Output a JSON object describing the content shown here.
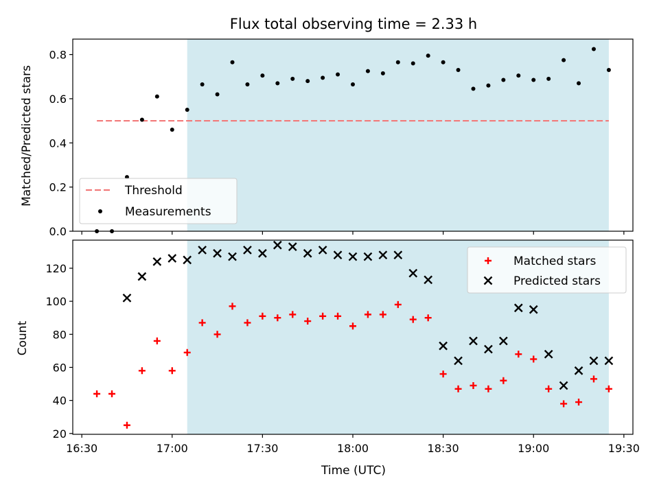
{
  "title": "Flux total observing time = 2.33 h",
  "chart_data": [
    {
      "type": "scatter",
      "ylabel": "Matched/Predicted stars",
      "ylim": [
        0,
        0.87
      ],
      "yticks": [
        0,
        0.2,
        0.4,
        0.6,
        0.8
      ],
      "ytick_labels": [
        "0.0",
        "0.2",
        "0.4",
        "0.6",
        "0.8"
      ],
      "shaded_region": [
        "17:05",
        "19:25"
      ],
      "shade_color": "#d3eaf0",
      "legend": {
        "position": "lower-left",
        "entries": [
          "Threshold",
          "Measurements"
        ]
      },
      "series": [
        {
          "name": "Threshold",
          "kind": "dashed-line",
          "color": "#f27a7a",
          "x": [
            "16:35",
            "19:25"
          ],
          "y": [
            0.5,
            0.5
          ]
        },
        {
          "name": "Measurements",
          "kind": "dot",
          "color": "#000000",
          "x": [
            "16:35",
            "16:40",
            "16:45",
            "16:50",
            "16:55",
            "17:00",
            "17:05",
            "17:10",
            "17:15",
            "17:20",
            "17:25",
            "17:30",
            "17:35",
            "17:40",
            "17:45",
            "17:50",
            "17:55",
            "18:00",
            "18:05",
            "18:10",
            "18:15",
            "18:20",
            "18:25",
            "18:30",
            "18:35",
            "18:40",
            "18:45",
            "18:50",
            "18:55",
            "19:00",
            "19:05",
            "19:10",
            "19:15",
            "19:20",
            "19:25"
          ],
          "y": [
            0.0,
            0.0,
            0.245,
            0.505,
            0.61,
            0.46,
            0.55,
            0.665,
            0.62,
            0.765,
            0.665,
            0.705,
            0.67,
            0.69,
            0.68,
            0.695,
            0.71,
            0.665,
            0.725,
            0.715,
            0.765,
            0.76,
            0.795,
            0.765,
            0.73,
            0.645,
            0.66,
            0.685,
            0.705,
            0.685,
            0.69,
            0.775,
            0.67,
            0.825,
            0.73
          ]
        }
      ]
    },
    {
      "type": "scatter",
      "xlabel": "Time (UTC)",
      "ylabel": "Count",
      "ylim": [
        19.5,
        137
      ],
      "yticks": [
        20,
        40,
        60,
        80,
        100,
        120
      ],
      "ytick_labels": [
        "20",
        "40",
        "60",
        "80",
        "100",
        "120"
      ],
      "x_tick_labels": [
        "16:30",
        "17:00",
        "17:30",
        "18:00",
        "18:30",
        "19:00",
        "19:30"
      ],
      "xlim": [
        "16:27",
        "19:33"
      ],
      "shaded_region": [
        "17:05",
        "19:25"
      ],
      "shade_color": "#d3eaf0",
      "legend": {
        "position": "upper-right",
        "entries": [
          "Matched stars",
          "Predicted stars"
        ]
      },
      "series": [
        {
          "name": "Matched stars",
          "kind": "plus",
          "color": "#ff0000",
          "x": [
            "16:35",
            "16:40",
            "16:45",
            "16:50",
            "16:55",
            "17:00",
            "17:05",
            "17:10",
            "17:15",
            "17:20",
            "17:25",
            "17:30",
            "17:35",
            "17:40",
            "17:45",
            "17:50",
            "17:55",
            "18:00",
            "18:05",
            "18:10",
            "18:15",
            "18:20",
            "18:25",
            "18:30",
            "18:35",
            "18:40",
            "18:45",
            "18:50",
            "18:55",
            "19:00",
            "19:05",
            "19:10",
            "19:15",
            "19:20",
            "19:25"
          ],
          "y": [
            44,
            44,
            25,
            58,
            76,
            58,
            69,
            87,
            80,
            97,
            87,
            91,
            90,
            92,
            88,
            91,
            91,
            85,
            92,
            92,
            98,
            89,
            90,
            56,
            47,
            49,
            47,
            52,
            68,
            65,
            47,
            38,
            39,
            53,
            47
          ]
        },
        {
          "name": "Predicted stars",
          "kind": "x",
          "color": "#000000",
          "x": [
            "16:45",
            "16:50",
            "16:55",
            "17:00",
            "17:05",
            "17:10",
            "17:15",
            "17:20",
            "17:25",
            "17:30",
            "17:35",
            "17:40",
            "17:45",
            "17:50",
            "17:55",
            "18:00",
            "18:05",
            "18:10",
            "18:15",
            "18:20",
            "18:25",
            "18:30",
            "18:35",
            "18:40",
            "18:45",
            "18:50",
            "18:55",
            "19:00",
            "19:05",
            "19:10",
            "19:15",
            "19:20",
            "19:25"
          ],
          "y": [
            102,
            115,
            124,
            126,
            125,
            131,
            129,
            127,
            131,
            129,
            134,
            133,
            129,
            131,
            128,
            127,
            127,
            128,
            128,
            117,
            113,
            73,
            64,
            76,
            71,
            76,
            96,
            95,
            68,
            49,
            58,
            64,
            64
          ]
        }
      ]
    }
  ]
}
